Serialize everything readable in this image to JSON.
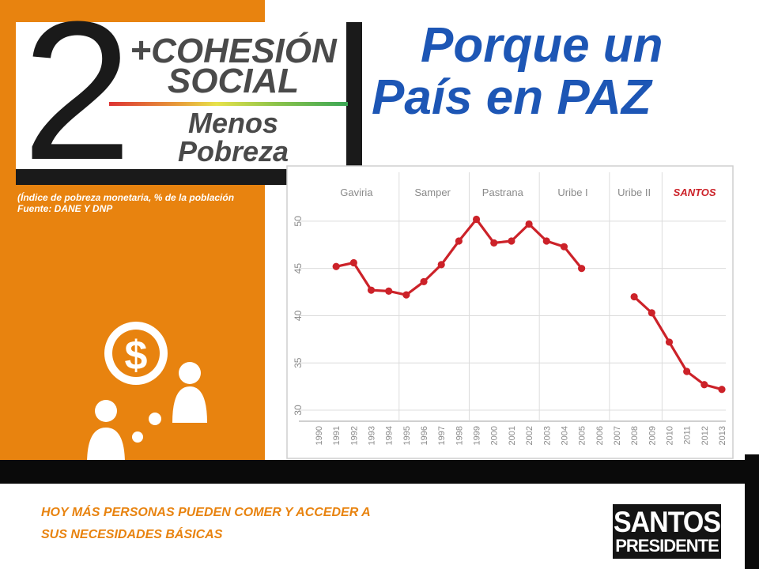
{
  "badge": {
    "number": "2",
    "plus": "+",
    "line1": "COHESIÓN",
    "line2": "SOCIAL",
    "line3a": "Menos",
    "line3b": "Pobreza"
  },
  "headline": {
    "line1": "Porque un",
    "line2": "País en PAZ"
  },
  "source": {
    "line1": "(Índice de pobreza monetaria, % de la población",
    "line2": "Fuente: DANE Y DNP"
  },
  "footer": {
    "line1": "HOY MÁS PERSONAS PUEDEN COMER Y ACCEDER A",
    "line2": "SUS NECESIDADES BÁSICAS"
  },
  "logo": {
    "line1": "SANTOS",
    "line2": "PRESIDENTE"
  },
  "icons": {
    "coin_symbol": "$",
    "coin": "coin-dollar-icon",
    "people": "people-icon"
  },
  "colors": {
    "orange": "#e8830f",
    "line": "#cc2229",
    "headline_blue": "#1d56b5",
    "period_label": "#8a8a8a",
    "santos_label": "#cc2229"
  },
  "chart_data": {
    "type": "line",
    "categories": [
      "1990",
      "1991",
      "1992",
      "1993",
      "1994",
      "1995",
      "1996",
      "1997",
      "1998",
      "1999",
      "2000",
      "2001",
      "2002",
      "2003",
      "2004",
      "2005",
      "2006",
      "2007",
      "2008",
      "2009",
      "2010",
      "2011",
      "2012",
      "2013"
    ],
    "series": [
      {
        "values": [
          null,
          45.2,
          45.6,
          42.7,
          42.6,
          42.2,
          43.6,
          45.4,
          47.9,
          50.2,
          47.7,
          47.9,
          49.7,
          47.9,
          47.3,
          45.0,
          null,
          null,
          42.0,
          40.3,
          37.2,
          34.1,
          32.7,
          32.2
        ]
      }
    ],
    "periods": [
      {
        "label": "Gaviria",
        "color": "#8a8a8a"
      },
      {
        "label": "Samper",
        "color": "#8a8a8a"
      },
      {
        "label": "Pastrana",
        "color": "#8a8a8a"
      },
      {
        "label": "Uribe I",
        "color": "#8a8a8a"
      },
      {
        "label": "Uribe II",
        "color": "#8a8a8a"
      },
      {
        "label": "SANTOS",
        "color": "#cc2229"
      }
    ],
    "yticks": [
      30,
      35,
      40,
      45,
      50
    ],
    "ylim": [
      29.5,
      52.5
    ],
    "grid": true,
    "title": "",
    "xlabel": "",
    "ylabel": ""
  }
}
